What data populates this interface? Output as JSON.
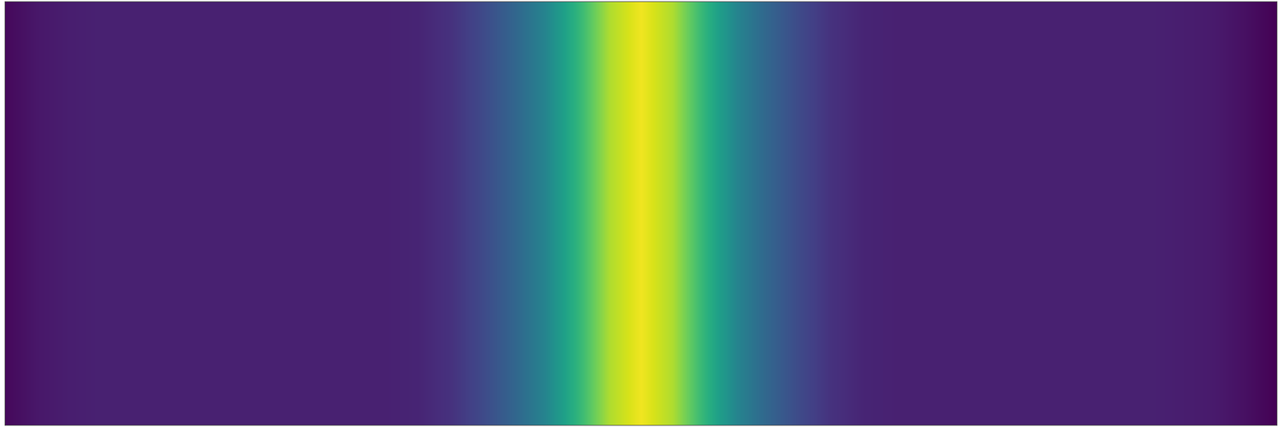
{
  "chart_data": {
    "type": "heatmap",
    "x": [
      0,
      0.025,
      0.05,
      0.075,
      0.1,
      0.125,
      0.15,
      0.175,
      0.2,
      0.225,
      0.25,
      0.275,
      0.3,
      0.325,
      0.35,
      0.375,
      0.4,
      0.425,
      0.45,
      0.475,
      0.5,
      0.525,
      0.55,
      0.575,
      0.6,
      0.625,
      0.65,
      0.675,
      0.7,
      0.725,
      0.75,
      0.775,
      0.8,
      0.825,
      0.85,
      0.875,
      0.9,
      0.925,
      0.95,
      0.975,
      1
    ],
    "y": [
      0,
      1
    ],
    "z": [
      [
        0.02,
        0.06,
        0.08,
        0.09,
        0.09,
        0.09,
        0.09,
        0.09,
        0.09,
        0.09,
        0.09,
        0.09,
        0.09,
        0.1,
        0.14,
        0.22,
        0.32,
        0.45,
        0.65,
        0.88,
        0.98,
        0.88,
        0.65,
        0.45,
        0.32,
        0.22,
        0.14,
        0.1,
        0.09,
        0.09,
        0.09,
        0.09,
        0.09,
        0.09,
        0.09,
        0.09,
        0.09,
        0.08,
        0.07,
        0.04,
        0.0
      ]
    ],
    "xlim": [
      0,
      1
    ],
    "ylim": [
      0,
      1
    ],
    "zlim": [
      0,
      1
    ],
    "color": "Viridis",
    "tick_labels": false,
    "grid": false
  }
}
